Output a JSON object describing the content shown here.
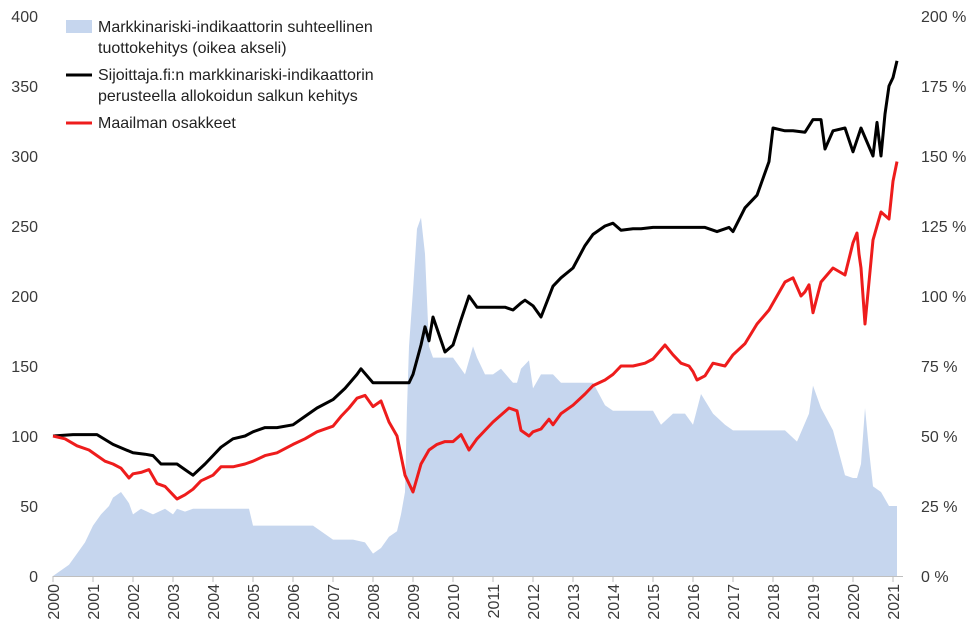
{
  "chart_data": {
    "type": "line",
    "xlim": [
      2000,
      2021.25
    ],
    "x_ticks": [
      "2000",
      "2001",
      "2002",
      "2003",
      "2004",
      "2005",
      "2006",
      "2007",
      "2008",
      "2009",
      "2010",
      "2011",
      "2012",
      "2013",
      "2014",
      "2015",
      "2016",
      "2017",
      "2018",
      "2019",
      "2020",
      "2021"
    ],
    "y_left": {
      "range": [
        0,
        400
      ],
      "ticks": [
        "0",
        "50",
        "100",
        "150",
        "200",
        "250",
        "300",
        "350",
        "400"
      ]
    },
    "y_right": {
      "range": [
        0,
        200
      ],
      "ticks": [
        "0 %",
        "25 %",
        "50 %",
        "75 %",
        "100 %",
        "125 %",
        "150 %",
        "175 %",
        "200 %"
      ]
    },
    "grid": false,
    "legend_position": "top-left",
    "series": [
      {
        "name": "Markkinariski-indikaattorin suhteellinen tuottokehitys (oikea akseli)",
        "kind": "area",
        "axis": "right",
        "color": "#c6d6ee",
        "x": [
          2000.0,
          2000.2,
          2000.4,
          2000.6,
          2000.8,
          2001.0,
          2001.2,
          2001.4,
          2001.5,
          2001.7,
          2001.9,
          2002.0,
          2002.2,
          2002.5,
          2002.8,
          2003.0,
          2003.1,
          2003.3,
          2003.5,
          2003.7,
          2004.0,
          2004.3,
          2004.6,
          2004.9,
          2005.0,
          2005.5,
          2006.0,
          2006.5,
          2007.0,
          2007.5,
          2007.8,
          2008.0,
          2008.2,
          2008.4,
          2008.6,
          2008.7,
          2008.8,
          2008.85,
          2008.9,
          2009.0,
          2009.1,
          2009.2,
          2009.3,
          2009.4,
          2009.5,
          2009.7,
          2010.0,
          2010.3,
          2010.5,
          2010.6,
          2010.8,
          2011.0,
          2011.2,
          2011.5,
          2011.6,
          2011.7,
          2011.9,
          2012.0,
          2012.2,
          2012.5,
          2012.7,
          2013.0,
          2013.3,
          2013.5,
          2013.8,
          2014.0,
          2014.5,
          2015.0,
          2015.2,
          2015.5,
          2015.8,
          2016.0,
          2016.2,
          2016.5,
          2016.8,
          2017.0,
          2017.5,
          2018.0,
          2018.3,
          2018.6,
          2018.9,
          2019.0,
          2019.2,
          2019.5,
          2019.8,
          2020.0,
          2020.1,
          2020.2,
          2020.3,
          2020.4,
          2020.5,
          2020.7,
          2020.9,
          2021.0,
          2021.1
        ],
        "values": [
          0,
          2,
          4,
          8,
          12,
          18,
          22,
          25,
          28,
          30,
          26,
          22,
          24,
          22,
          24,
          22,
          24,
          23,
          24,
          24,
          24,
          24,
          24,
          24,
          18,
          18,
          18,
          18,
          13,
          13,
          12,
          8,
          10,
          14,
          16,
          22,
          30,
          60,
          82,
          102,
          124,
          128,
          115,
          82,
          78,
          78,
          78,
          72,
          82,
          78,
          72,
          72,
          74,
          69,
          69,
          74,
          77,
          67,
          72,
          72,
          69,
          69,
          69,
          69,
          61,
          59,
          59,
          59,
          54,
          58,
          58,
          54,
          65,
          58,
          54,
          52,
          52,
          52,
          52,
          48,
          58,
          68,
          60,
          52,
          36,
          35,
          35,
          40,
          60,
          45,
          32,
          30,
          25,
          25,
          25
        ],
        "values_shown_as": "filled area under curve"
      },
      {
        "name": "Sijoittaja.fi:n markkinariski-indikaattorin perusteella allokoidun salkun kehitys",
        "kind": "line",
        "axis": "left",
        "color": "#000000",
        "x": [
          2000.0,
          2000.5,
          2001.0,
          2001.1,
          2001.5,
          2002.0,
          2002.3,
          2002.5,
          2002.7,
          2003.0,
          2003.1,
          2003.3,
          2003.5,
          2003.8,
          2004.0,
          2004.2,
          2004.5,
          2004.8,
          2005.0,
          2005.3,
          2005.6,
          2006.0,
          2006.3,
          2006.6,
          2007.0,
          2007.3,
          2007.6,
          2007.7,
          2008.0,
          2008.5,
          2008.9,
          2009.0,
          2009.2,
          2009.3,
          2009.4,
          2009.5,
          2009.8,
          2010.0,
          2010.2,
          2010.4,
          2010.6,
          2010.8,
          2011.0,
          2011.1,
          2011.3,
          2011.5,
          2011.7,
          2011.8,
          2012.0,
          2012.2,
          2012.5,
          2012.7,
          2013.0,
          2013.3,
          2013.5,
          2013.8,
          2014.0,
          2014.2,
          2014.5,
          2014.7,
          2015.0,
          2015.5,
          2016.0,
          2016.3,
          2016.6,
          2016.9,
          2017.0,
          2017.3,
          2017.6,
          2017.9,
          2018.0,
          2018.3,
          2018.5,
          2018.8,
          2019.0,
          2019.2,
          2019.3,
          2019.5,
          2019.8,
          2020.0,
          2020.2,
          2020.5,
          2020.6,
          2020.7,
          2020.8,
          2020.9,
          2021.0,
          2021.1
        ],
        "values": [
          100,
          101,
          101,
          101,
          94,
          88,
          87,
          86,
          80,
          80,
          80,
          76,
          72,
          80,
          86,
          92,
          98,
          100,
          103,
          106,
          106,
          108,
          114,
          120,
          126,
          134,
          144,
          148,
          138,
          138,
          138,
          144,
          165,
          178,
          168,
          185,
          160,
          165,
          183,
          200,
          192,
          192,
          192,
          192,
          192,
          190,
          195,
          197,
          193,
          185,
          207,
          213,
          220,
          236,
          244,
          250,
          252,
          247,
          248,
          248,
          249,
          249,
          249,
          249,
          246,
          249,
          246,
          263,
          272,
          296,
          320,
          318,
          318,
          317,
          326,
          326,
          305,
          318,
          320,
          303,
          320,
          300,
          324,
          300,
          330,
          350,
          356,
          368
        ]
      },
      {
        "name": "Maailman osakkeet",
        "kind": "line",
        "axis": "left",
        "color": "#ee1c1c",
        "x": [
          2000.0,
          2000.3,
          2000.6,
          2000.9,
          2001.1,
          2001.3,
          2001.5,
          2001.7,
          2001.9,
          2002.0,
          2002.2,
          2002.4,
          2002.6,
          2002.8,
          2003.0,
          2003.1,
          2003.3,
          2003.5,
          2003.7,
          2004.0,
          2004.2,
          2004.5,
          2004.8,
          2005.0,
          2005.3,
          2005.6,
          2006.0,
          2006.3,
          2006.6,
          2007.0,
          2007.2,
          2007.4,
          2007.6,
          2007.8,
          2008.0,
          2008.2,
          2008.4,
          2008.6,
          2008.8,
          2009.0,
          2009.1,
          2009.2,
          2009.4,
          2009.6,
          2009.8,
          2010.0,
          2010.2,
          2010.4,
          2010.6,
          2010.8,
          2011.0,
          2011.2,
          2011.4,
          2011.6,
          2011.7,
          2011.9,
          2012.0,
          2012.2,
          2012.4,
          2012.5,
          2012.7,
          2013.0,
          2013.3,
          2013.5,
          2013.8,
          2014.0,
          2014.2,
          2014.5,
          2014.8,
          2015.0,
          2015.3,
          2015.5,
          2015.7,
          2015.9,
          2016.0,
          2016.1,
          2016.3,
          2016.5,
          2016.8,
          2017.0,
          2017.3,
          2017.6,
          2017.9,
          2018.0,
          2018.1,
          2018.3,
          2018.5,
          2018.7,
          2018.8,
          2018.9,
          2019.0,
          2019.2,
          2019.5,
          2019.8,
          2020.0,
          2020.1,
          2020.15,
          2020.2,
          2020.3,
          2020.5,
          2020.7,
          2020.9,
          2021.0,
          2021.1
        ],
        "values": [
          100,
          98,
          93,
          90,
          86,
          82,
          80,
          77,
          70,
          73,
          74,
          76,
          66,
          64,
          58,
          55,
          58,
          62,
          68,
          72,
          78,
          78,
          80,
          82,
          86,
          88,
          94,
          98,
          103,
          107,
          114,
          120,
          127,
          129,
          121,
          125,
          110,
          100,
          72,
          60,
          70,
          80,
          90,
          94,
          96,
          96,
          101,
          90,
          98,
          104,
          110,
          115,
          120,
          118,
          104,
          100,
          103,
          105,
          112,
          108,
          116,
          122,
          130,
          136,
          140,
          144,
          150,
          150,
          152,
          155,
          165,
          158,
          152,
          150,
          146,
          140,
          143,
          152,
          150,
          158,
          166,
          180,
          190,
          195,
          200,
          210,
          213,
          200,
          203,
          208,
          188,
          210,
          220,
          215,
          238,
          245,
          230,
          220,
          180,
          240,
          260,
          255,
          282,
          296
        ]
      }
    ]
  }
}
